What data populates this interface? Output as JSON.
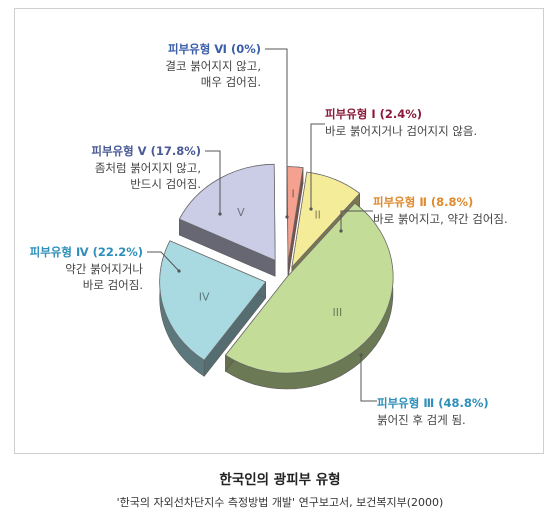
{
  "chart_data": {
    "type": "pie",
    "slices": [
      {
        "roman": "I",
        "title": "피부유형 Ⅰ (2.4%)",
        "value": 2.4,
        "desc": [
          "바로 붉어지거나 검어지지 않음."
        ],
        "color": "#f4a18f",
        "title_color": "#8b1a3a"
      },
      {
        "roman": "II",
        "title": "피부유형 Ⅱ (8.8%)",
        "value": 8.8,
        "desc": [
          "바로 붉어지고, 약간 검어짐."
        ],
        "color": "#f5ec9a",
        "title_color": "#e08a2c"
      },
      {
        "roman": "III",
        "title": "피부유형 Ⅲ (48.8%)",
        "value": 48.8,
        "desc": [
          "붉어진 후 검게 됨."
        ],
        "color": "#c3dc98",
        "title_color": "#2e8fba"
      },
      {
        "roman": "IV",
        "title": "피부유형 Ⅳ (22.2%)",
        "value": 22.2,
        "desc": [
          "약간 붉어지거나",
          "바로 검어짐."
        ],
        "color": "#a9dae2",
        "title_color": "#2e8fba"
      },
      {
        "roman": "V",
        "title": "피부유형 Ⅴ (17.8%)",
        "value": 17.8,
        "desc": [
          "좀처럼 붉어지지 않고,",
          "반드시 검어짐."
        ],
        "color": "#cbcde6",
        "title_color": "#4a5a94"
      },
      {
        "roman": "VI",
        "title": "피부유형 Ⅵ (0%)",
        "value": 0,
        "desc": [
          "결코 붉어지지 않고,",
          "매우 검어짐."
        ],
        "color": "#cbcde6",
        "title_color": "#3a5ea8"
      }
    ]
  },
  "caption": {
    "title": "한국인의 광피부 유형",
    "source": "'한국의 자외선차단지수 측정방법 개발' 연구보고서, 보건복지부(2000)"
  }
}
